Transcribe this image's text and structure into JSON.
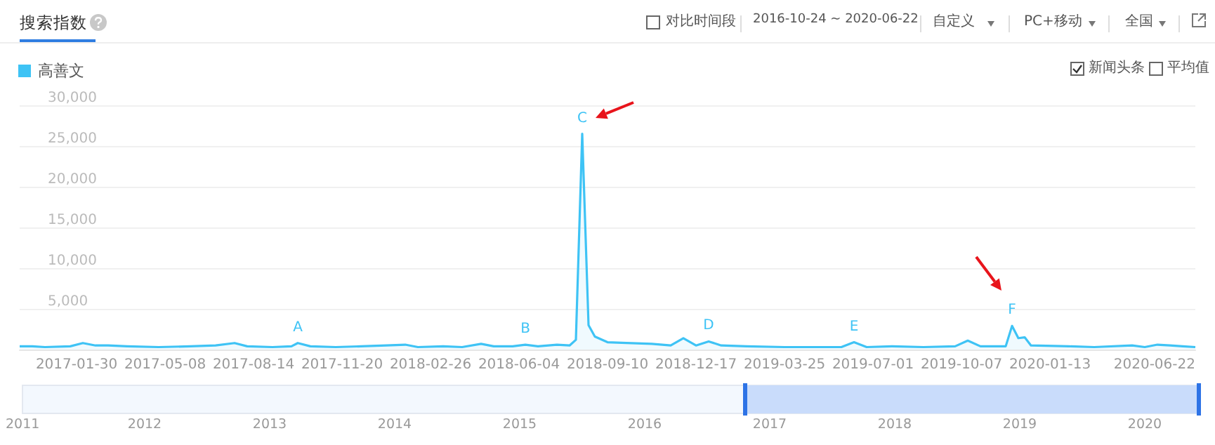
{
  "chart_data": {
    "type": "area",
    "title": "搜索指数",
    "legend": "top left",
    "grid": "y",
    "marker": "none",
    "line_style": "solid",
    "series": [
      {
        "name": "高善文",
        "color": "#3ec3f5",
        "x": [
          "2016-11-28",
          "2016-12-12",
          "2016-12-26",
          "2017-01-23",
          "2017-02-06",
          "2017-02-20",
          "2017-03-06",
          "2017-03-27",
          "2017-05-01",
          "2017-06-05",
          "2017-07-03",
          "2017-07-24",
          "2017-08-07",
          "2017-09-04",
          "2017-09-25",
          "2017-10-02",
          "2017-10-16",
          "2017-11-13",
          "2017-12-11",
          "2018-01-08",
          "2018-01-29",
          "2018-02-12",
          "2018-03-12",
          "2018-04-02",
          "2018-04-23",
          "2018-05-07",
          "2018-05-28",
          "2018-06-11",
          "2018-06-25",
          "2018-07-16",
          "2018-07-30",
          "2018-08-06",
          "2018-08-13",
          "2018-08-20",
          "2018-08-27",
          "2018-09-10",
          "2018-10-01",
          "2018-10-29",
          "2018-11-19",
          "2018-12-03",
          "2018-12-17",
          "2018-12-31",
          "2019-01-14",
          "2019-02-11",
          "2019-03-25",
          "2019-05-27",
          "2019-06-10",
          "2019-06-24",
          "2019-07-22",
          "2019-08-26",
          "2019-09-30",
          "2019-10-14",
          "2019-10-28",
          "2019-11-25",
          "2019-12-02",
          "2019-12-09",
          "2019-12-16",
          "2019-12-23",
          "2020-02-03",
          "2020-03-02",
          "2020-04-13",
          "2020-04-27",
          "2020-05-11",
          "2020-05-25",
          "2020-06-08",
          "2020-06-22"
        ],
        "values": [
          400,
          400,
          300,
          400,
          800,
          500,
          500,
          400,
          300,
          400,
          500,
          800,
          400,
          300,
          400,
          800,
          400,
          300,
          400,
          500,
          600,
          300,
          400,
          300,
          700,
          400,
          400,
          600,
          400,
          600,
          500,
          1200,
          26500,
          3000,
          1600,
          900,
          800,
          700,
          500,
          1400,
          500,
          1000,
          500,
          400,
          300,
          300,
          900,
          300,
          400,
          300,
          400,
          1100,
          400,
          400,
          2900,
          1400,
          1500,
          500,
          400,
          300,
          500,
          300,
          600,
          500,
          400,
          300
        ]
      }
    ],
    "xlim": [
      "2016-11-28",
      "2020-06-22"
    ],
    "xticks": [
      "2017-01-30",
      "2017-05-08",
      "2017-08-14",
      "2017-11-20",
      "2018-02-26",
      "2018-06-04",
      "2018-09-10",
      "2018-12-17",
      "2019-03-25",
      "2019-07-01",
      "2019-10-07",
      "2020-01-13",
      "2020-06-22"
    ],
    "ylim": [
      0,
      30000
    ],
    "yticks": [
      {
        "value": 5000,
        "label": "5,000"
      },
      {
        "value": 10000,
        "label": "10,000"
      },
      {
        "value": 15000,
        "label": "15,000"
      },
      {
        "value": 20000,
        "label": "20,000"
      },
      {
        "value": 25000,
        "label": "25,000"
      },
      {
        "value": 30000,
        "label": "30,000"
      }
    ],
    "annotations": [
      {
        "text": "A",
        "x": "2017-10-02",
        "y": 800
      },
      {
        "text": "B",
        "x": "2018-06-11",
        "y": 600
      },
      {
        "text": "C",
        "x": "2018-08-13",
        "y": 26500
      },
      {
        "text": "D",
        "x": "2018-12-31",
        "y": 1000
      },
      {
        "text": "E",
        "x": "2019-06-10",
        "y": 900
      },
      {
        "text": "F",
        "x": "2019-12-02",
        "y": 2900
      },
      "对比时间段",
      "2016-10-24 ~ 2020-06-22",
      "自定义",
      "PC+移动",
      "全国",
      "新闻头条",
      "平均值",
      "2011",
      "2012",
      "2013",
      "2014",
      "2015",
      "2016",
      "2017",
      "2018",
      "2019",
      "2020"
    ]
  }
}
